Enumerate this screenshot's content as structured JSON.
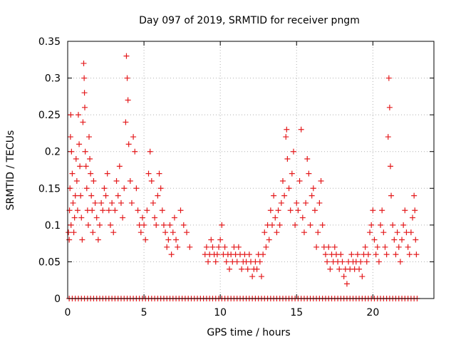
{
  "chart_data": {
    "type": "scatter",
    "title": "Day 097 of 2019, SRMTID for receiver pngm",
    "xlabel": "GPS time / hours",
    "ylabel": "SRMTID / TECUs",
    "xlim": [
      0,
      24
    ],
    "ylim": [
      0,
      0.35
    ],
    "xticks": [
      0,
      5,
      10,
      15,
      20
    ],
    "xtick_labels": [
      "0",
      "5",
      "10",
      "15",
      "20"
    ],
    "yticks": [
      0,
      0.05,
      0.1,
      0.15,
      0.2,
      0.25,
      0.3,
      0.35
    ],
    "ytick_labels": [
      "0",
      "0.05",
      "0.1",
      "0.15",
      "0.2",
      "0.25",
      "0.3",
      "0.35"
    ],
    "grid": true,
    "marker": "+",
    "series": [
      {
        "name": "SRMTID",
        "color": "#e41a1c",
        "points": [
          [
            0.05,
            0.09
          ],
          [
            0.1,
            0.08
          ],
          [
            0.12,
            0.12
          ],
          [
            0.15,
            0.15
          ],
          [
            0.18,
            0.22
          ],
          [
            0.2,
            0.25
          ],
          [
            0.22,
            0.1
          ],
          [
            0.25,
            0.2
          ],
          [
            0.3,
            0.17
          ],
          [
            0.35,
            0.13
          ],
          [
            0.4,
            0.09
          ],
          [
            0.45,
            0.11
          ],
          [
            0.5,
            0.14
          ],
          [
            0.55,
            0.19
          ],
          [
            0.6,
            0.16
          ],
          [
            0.65,
            0.12
          ],
          [
            0.7,
            0.25
          ],
          [
            0.75,
            0.21
          ],
          [
            0.8,
            0.18
          ],
          [
            0.85,
            0.14
          ],
          [
            0.9,
            0.11
          ],
          [
            0.95,
            0.08
          ],
          [
            1.0,
            0.24
          ],
          [
            1.05,
            0.32
          ],
          [
            1.08,
            0.3
          ],
          [
            1.1,
            0.28
          ],
          [
            1.12,
            0.26
          ],
          [
            1.15,
            0.2
          ],
          [
            1.2,
            0.18
          ],
          [
            1.25,
            0.15
          ],
          [
            1.3,
            0.12
          ],
          [
            1.35,
            0.1
          ],
          [
            1.4,
            0.22
          ],
          [
            1.45,
            0.19
          ],
          [
            1.5,
            0.17
          ],
          [
            1.55,
            0.14
          ],
          [
            1.6,
            0.12
          ],
          [
            1.65,
            0.09
          ],
          [
            1.7,
            0.16
          ],
          [
            1.8,
            0.13
          ],
          [
            1.9,
            0.11
          ],
          [
            2.0,
            0.08
          ],
          [
            2.1,
            0.1
          ],
          [
            2.2,
            0.13
          ],
          [
            2.3,
            0.12
          ],
          [
            2.4,
            0.15
          ],
          [
            2.5,
            0.14
          ],
          [
            2.6,
            0.17
          ],
          [
            2.7,
            0.12
          ],
          [
            2.8,
            0.1
          ],
          [
            2.9,
            0.13
          ],
          [
            3.0,
            0.09
          ],
          [
            3.1,
            0.12
          ],
          [
            3.2,
            0.16
          ],
          [
            3.3,
            0.14
          ],
          [
            3.4,
            0.18
          ],
          [
            3.5,
            0.13
          ],
          [
            3.6,
            0.11
          ],
          [
            3.7,
            0.15
          ],
          [
            3.8,
            0.24
          ],
          [
            3.85,
            0.33
          ],
          [
            3.9,
            0.3
          ],
          [
            3.95,
            0.27
          ],
          [
            4.0,
            0.21
          ],
          [
            4.1,
            0.16
          ],
          [
            4.2,
            0.13
          ],
          [
            4.3,
            0.22
          ],
          [
            4.4,
            0.2
          ],
          [
            4.5,
            0.15
          ],
          [
            4.6,
            0.12
          ],
          [
            4.7,
            0.1
          ],
          [
            4.8,
            0.09
          ],
          [
            4.9,
            0.11
          ],
          [
            5.0,
            0.1
          ],
          [
            5.1,
            0.08
          ],
          [
            5.2,
            0.12
          ],
          [
            5.3,
            0.17
          ],
          [
            5.4,
            0.2
          ],
          [
            5.5,
            0.16
          ],
          [
            5.6,
            0.13
          ],
          [
            5.7,
            0.11
          ],
          [
            5.8,
            0.1
          ],
          [
            5.9,
            0.14
          ],
          [
            6.0,
            0.17
          ],
          [
            6.1,
            0.15
          ],
          [
            6.2,
            0.12
          ],
          [
            6.3,
            0.1
          ],
          [
            6.4,
            0.09
          ],
          [
            6.5,
            0.07
          ],
          [
            6.6,
            0.08
          ],
          [
            6.7,
            0.1
          ],
          [
            6.8,
            0.06
          ],
          [
            6.9,
            0.09
          ],
          [
            7.0,
            0.11
          ],
          [
            7.1,
            0.08
          ],
          [
            7.2,
            0.07
          ],
          [
            7.4,
            0.12
          ],
          [
            7.6,
            0.1
          ],
          [
            7.8,
            0.09
          ],
          [
            8.0,
            0.07
          ],
          [
            9.0,
            0.06
          ],
          [
            9.1,
            0.07
          ],
          [
            9.2,
            0.05
          ],
          [
            9.3,
            0.06
          ],
          [
            9.4,
            0.08
          ],
          [
            9.5,
            0.07
          ],
          [
            9.6,
            0.06
          ],
          [
            9.7,
            0.05
          ],
          [
            9.8,
            0.06
          ],
          [
            9.9,
            0.07
          ],
          [
            10.0,
            0.08
          ],
          [
            10.1,
            0.1
          ],
          [
            10.2,
            0.06
          ],
          [
            10.3,
            0.07
          ],
          [
            10.4,
            0.05
          ],
          [
            10.5,
            0.06
          ],
          [
            10.6,
            0.04
          ],
          [
            10.7,
            0.06
          ],
          [
            10.8,
            0.05
          ],
          [
            10.9,
            0.07
          ],
          [
            11.0,
            0.06
          ],
          [
            11.1,
            0.05
          ],
          [
            11.2,
            0.07
          ],
          [
            11.3,
            0.06
          ],
          [
            11.4,
            0.04
          ],
          [
            11.5,
            0.05
          ],
          [
            11.6,
            0.06
          ],
          [
            11.7,
            0.05
          ],
          [
            11.8,
            0.04
          ],
          [
            11.9,
            0.06
          ],
          [
            12.0,
            0.05
          ],
          [
            12.1,
            0.03
          ],
          [
            12.2,
            0.04
          ],
          [
            12.3,
            0.05
          ],
          [
            12.4,
            0.04
          ],
          [
            12.5,
            0.06
          ],
          [
            12.6,
            0.05
          ],
          [
            12.7,
            0.03
          ],
          [
            12.8,
            0.06
          ],
          [
            12.9,
            0.09
          ],
          [
            13.0,
            0.07
          ],
          [
            13.1,
            0.1
          ],
          [
            13.2,
            0.08
          ],
          [
            13.3,
            0.12
          ],
          [
            13.4,
            0.1
          ],
          [
            13.5,
            0.14
          ],
          [
            13.6,
            0.11
          ],
          [
            13.7,
            0.09
          ],
          [
            13.8,
            0.12
          ],
          [
            13.9,
            0.1
          ],
          [
            14.0,
            0.13
          ],
          [
            14.1,
            0.16
          ],
          [
            14.2,
            0.14
          ],
          [
            14.3,
            0.22
          ],
          [
            14.35,
            0.23
          ],
          [
            14.4,
            0.19
          ],
          [
            14.5,
            0.15
          ],
          [
            14.6,
            0.12
          ],
          [
            14.7,
            0.17
          ],
          [
            14.8,
            0.2
          ],
          [
            14.9,
            0.1
          ],
          [
            15.0,
            0.13
          ],
          [
            15.1,
            0.12
          ],
          [
            15.2,
            0.16
          ],
          [
            15.3,
            0.23
          ],
          [
            15.4,
            0.11
          ],
          [
            15.5,
            0.09
          ],
          [
            15.6,
            0.13
          ],
          [
            15.7,
            0.19
          ],
          [
            15.8,
            0.17
          ],
          [
            15.9,
            0.1
          ],
          [
            16.0,
            0.14
          ],
          [
            16.1,
            0.15
          ],
          [
            16.2,
            0.12
          ],
          [
            16.3,
            0.07
          ],
          [
            16.4,
            0.09
          ],
          [
            16.5,
            0.13
          ],
          [
            16.6,
            0.16
          ],
          [
            16.7,
            0.1
          ],
          [
            16.8,
            0.07
          ],
          [
            16.9,
            0.06
          ],
          [
            17.0,
            0.05
          ],
          [
            17.1,
            0.07
          ],
          [
            17.2,
            0.04
          ],
          [
            17.3,
            0.06
          ],
          [
            17.4,
            0.05
          ],
          [
            17.5,
            0.07
          ],
          [
            17.6,
            0.06
          ],
          [
            17.7,
            0.05
          ],
          [
            17.8,
            0.04
          ],
          [
            17.9,
            0.06
          ],
          [
            18.0,
            0.05
          ],
          [
            18.1,
            0.03
          ],
          [
            18.2,
            0.04
          ],
          [
            18.3,
            0.02
          ],
          [
            18.4,
            0.05
          ],
          [
            18.5,
            0.04
          ],
          [
            18.6,
            0.06
          ],
          [
            18.7,
            0.05
          ],
          [
            18.8,
            0.04
          ],
          [
            18.9,
            0.05
          ],
          [
            19.0,
            0.06
          ],
          [
            19.1,
            0.04
          ],
          [
            19.2,
            0.05
          ],
          [
            19.3,
            0.03
          ],
          [
            19.4,
            0.06
          ],
          [
            19.5,
            0.07
          ],
          [
            19.6,
            0.05
          ],
          [
            19.7,
            0.06
          ],
          [
            19.8,
            0.09
          ],
          [
            19.9,
            0.1
          ],
          [
            20.0,
            0.12
          ],
          [
            20.1,
            0.08
          ],
          [
            20.2,
            0.06
          ],
          [
            20.3,
            0.07
          ],
          [
            20.4,
            0.05
          ],
          [
            20.5,
            0.1
          ],
          [
            20.6,
            0.12
          ],
          [
            20.7,
            0.09
          ],
          [
            20.8,
            0.07
          ],
          [
            20.9,
            0.06
          ],
          [
            21.0,
            0.22
          ],
          [
            21.05,
            0.3
          ],
          [
            21.1,
            0.26
          ],
          [
            21.15,
            0.18
          ],
          [
            21.2,
            0.14
          ],
          [
            21.3,
            0.1
          ],
          [
            21.4,
            0.08
          ],
          [
            21.5,
            0.06
          ],
          [
            21.6,
            0.09
          ],
          [
            21.7,
            0.07
          ],
          [
            21.8,
            0.05
          ],
          [
            21.9,
            0.08
          ],
          [
            22.0,
            0.1
          ],
          [
            22.1,
            0.12
          ],
          [
            22.2,
            0.09
          ],
          [
            22.3,
            0.07
          ],
          [
            22.4,
            0.06
          ],
          [
            22.5,
            0.09
          ],
          [
            22.6,
            0.11
          ],
          [
            22.7,
            0.14
          ],
          [
            22.75,
            0.12
          ],
          [
            22.8,
            0.08
          ],
          [
            22.85,
            0.06
          ]
        ]
      }
    ],
    "baseline_points_x": [
      0.1,
      0.3,
      0.5,
      0.7,
      0.9,
      1.1,
      1.3,
      1.5,
      1.7,
      1.9,
      2.1,
      2.3,
      2.5,
      2.7,
      2.9,
      3.1,
      3.3,
      3.5,
      3.7,
      3.9,
      4.1,
      4.3,
      4.5,
      4.7,
      4.9,
      5.1,
      5.3,
      5.5,
      5.7,
      5.9,
      6.1,
      6.3,
      6.5,
      6.7,
      6.9,
      7.1,
      7.3,
      7.5,
      7.7,
      7.9,
      8.1,
      8.3,
      8.5,
      8.7,
      8.9,
      9.1,
      9.3,
      9.5,
      9.7,
      9.9,
      10.1,
      10.3,
      10.5,
      10.7,
      10.9,
      11.1,
      11.3,
      11.5,
      11.7,
      11.9,
      12.1,
      12.3,
      12.5,
      12.7,
      12.9,
      13.1,
      13.3,
      13.5,
      13.7,
      13.9,
      14.1,
      14.3,
      14.5,
      14.7,
      14.9,
      15.1,
      15.3,
      15.5,
      15.7,
      15.9,
      16.1,
      16.3,
      16.5,
      16.7,
      16.9,
      17.1,
      17.3,
      17.5,
      17.7,
      17.9,
      18.1,
      18.3,
      18.5,
      18.7,
      18.9,
      19.1,
      19.3,
      19.5,
      19.7,
      19.9,
      20.1,
      20.3,
      20.5,
      20.7,
      20.9,
      21.1,
      21.3,
      21.5,
      21.7,
      21.9,
      22.1,
      22.3,
      22.5,
      22.7,
      22.9
    ]
  }
}
